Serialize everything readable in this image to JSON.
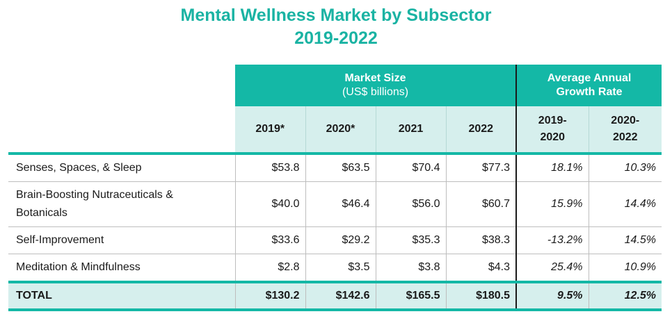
{
  "title": {
    "line1": "Mental Wellness Market by Subsector",
    "line2": "2019-2022"
  },
  "header": {
    "market_size_line1": "Market Size",
    "market_size_line2": "(US$ billions)",
    "growth_line1": "Average Annual",
    "growth_line2": "Growth Rate",
    "years": [
      "2019*",
      "2020*",
      "2021",
      "2022"
    ],
    "growth_periods": [
      {
        "line1": "2019-",
        "line2": "2020"
      },
      {
        "line1": "2020-",
        "line2": "2022"
      }
    ]
  },
  "rows": [
    {
      "name": "Senses, Spaces, & Sleep",
      "name2": "",
      "values": [
        "$53.8",
        "$63.5",
        "$70.4",
        "$77.3"
      ],
      "rates": [
        "18.1%",
        "10.3%"
      ]
    },
    {
      "name": "Brain-Boosting Nutraceuticals &",
      "name2": "Botanicals",
      "values": [
        "$40.0",
        "$46.4",
        "$56.0",
        "$60.7"
      ],
      "rates": [
        "15.9%",
        "14.4%"
      ]
    },
    {
      "name": "Self-Improvement",
      "name2": "",
      "values": [
        "$33.6",
        "$29.2",
        "$35.3",
        "$38.3"
      ],
      "rates": [
        "-13.2%",
        "14.5%"
      ]
    },
    {
      "name": "Meditation & Mindfulness",
      "name2": "",
      "values": [
        "$2.8",
        "$3.5",
        "$3.8",
        "$4.3"
      ],
      "rates": [
        "25.4%",
        "10.9%"
      ]
    }
  ],
  "total": {
    "name": "TOTAL",
    "values": [
      "$130.2",
      "$142.6",
      "$165.5",
      "$180.5"
    ],
    "rates": [
      "9.5%",
      "12.5%"
    ]
  },
  "colors": {
    "accent": "#14b8a6",
    "title": "#1ab3a3",
    "header_light": "#d6efed"
  }
}
